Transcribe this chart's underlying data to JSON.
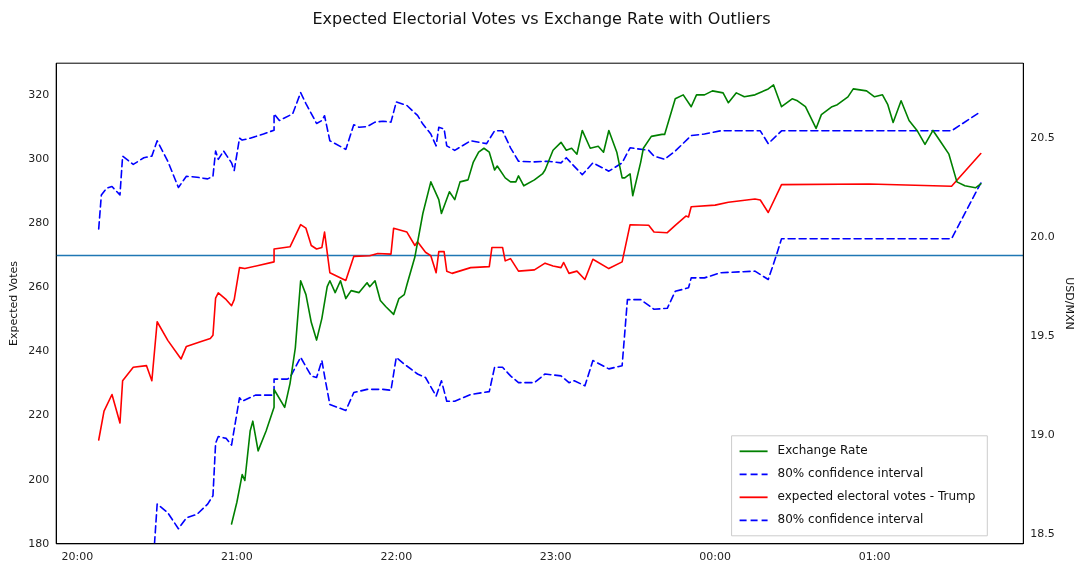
{
  "chart_data": {
    "type": "line",
    "title": "Expected Electorial Votes vs Exchange Rate with Outliers",
    "ylabel": "Expected Votes",
    "y2label": "USD/MXN",
    "xlim": [
      "--11-08T19:52",
      "--11-09T01:56"
    ],
    "xticks": [
      {
        "value": "--11-08T20:00",
        "label": "20:00"
      },
      {
        "value": "--11-08T21:00",
        "label": "21:00"
      },
      {
        "value": "--11-08T22:00",
        "label": "22:00"
      },
      {
        "value": "--11-08T23:00",
        "label": "23:00"
      },
      {
        "value": "--11-09T00:00",
        "label": "00:00"
      },
      {
        "value": "--11-09T01:00",
        "label": "01:00"
      }
    ],
    "ylim": [
      180,
      330
    ],
    "yticks": [
      180,
      200,
      220,
      240,
      260,
      280,
      300,
      320
    ],
    "y2lim": [
      18.45,
      20.88
    ],
    "y2ticks": [
      18.5,
      {
        "value": 19,
        "label": "19.0"
      },
      19.5,
      {
        "value": 20,
        "label": "20.0"
      },
      20.5
    ],
    "legend": "bottom right",
    "marker": "none",
    "ref_lines": [
      {
        "axis": "y",
        "value": 270,
        "color": "#1f77b4"
      }
    ],
    "series": [
      {
        "name": "Exchange Rate",
        "color": "#008000",
        "axis": "y2",
        "line_style": "solid",
        "x": [
          "--11-08T20:58",
          "--11-08T21:00",
          "--11-08T21:02",
          "--11-08T21:03",
          "--11-08T21:05",
          "--11-08T21:06",
          "--11-08T21:08",
          "--11-08T21:11",
          "--11-08T21:14",
          "--11-08T21:14",
          "--11-08T21:18",
          "--11-08T21:20",
          "--11-08T21:22",
          "--11-08T21:24",
          "--11-08T21:26",
          "--11-08T21:28",
          "--11-08T21:30",
          "--11-08T21:32",
          "--11-08T21:34",
          "--11-08T21:35",
          "--11-08T21:37",
          "--11-08T21:39",
          "--11-08T21:41",
          "--11-08T21:43",
          "--11-08T21:46",
          "--11-08T21:49",
          "--11-08T21:50",
          "--11-08T21:52",
          "--11-08T21:54",
          "--11-08T21:56",
          "--11-08T21:59",
          "--11-08T22:01",
          "--11-08T22:03",
          "--11-08T22:04",
          "--11-08T22:07",
          "--11-08T22:10",
          "--11-08T22:13",
          "--11-08T22:16",
          "--11-08T22:17",
          "--11-08T22:20",
          "--11-08T22:22",
          "--11-08T22:24",
          "--11-08T22:27",
          "--11-08T22:29",
          "--11-08T22:31",
          "--11-08T22:33",
          "--11-08T22:35",
          "--11-08T22:37",
          "--11-08T22:38",
          "--11-08T22:41",
          "--11-08T22:43",
          "--11-08T22:45",
          "--11-08T22:46",
          "--11-08T22:48",
          "--11-08T22:52",
          "--11-08T22:55",
          "--11-08T22:56",
          "--11-08T22:59",
          "--11-08T23:02",
          "--11-08T23:04",
          "--11-08T23:06",
          "--11-08T23:08",
          "--11-08T23:10",
          "--11-08T23:13",
          "--11-08T23:16",
          "--11-08T23:18",
          "--11-08T23:20",
          "--11-08T23:23",
          "--11-08T23:25",
          "--11-08T23:26",
          "--11-08T23:28",
          "--11-08T23:29",
          "--11-08T23:32",
          "--11-08T23:33",
          "--11-08T23:36",
          "--11-08T23:40",
          "--11-08T23:41",
          "--11-08T23:45",
          "--11-08T23:48",
          "--11-08T23:51",
          "--11-08T23:53",
          "--11-08T23:56",
          "--11-08T23:59",
          "--11-09T00:03",
          "--11-09T00:05",
          "--11-09T00:08",
          "--11-09T00:11",
          "--11-09T00:15",
          "--11-09T00:20",
          "--11-09T00:22",
          "--11-09T00:25",
          "--11-09T00:29",
          "--11-09T00:31",
          "--11-09T00:34",
          "--11-09T00:38",
          "--11-09T00:40",
          "--11-09T00:44",
          "--11-09T00:46",
          "--11-09T00:50",
          "--11-09T00:52",
          "--11-09T00:57",
          "--11-09T01:00",
          "--11-09T01:03",
          "--11-09T01:05",
          "--11-09T01:07",
          "--11-09T01:10",
          "--11-09T01:13",
          "--11-09T01:16",
          "--11-09T01:19",
          "--11-09T01:22",
          "--11-09T01:25",
          "--11-09T01:28",
          "--11-09T01:31",
          "--11-09T01:34",
          "--11-09T01:38",
          "--11-09T01:40"
        ],
        "values": [
          18.55,
          18.66,
          18.8,
          18.77,
          19.02,
          19.07,
          18.92,
          19.02,
          19.14,
          19.23,
          19.14,
          19.26,
          19.44,
          19.78,
          19.71,
          19.57,
          19.48,
          19.59,
          19.75,
          19.78,
          19.72,
          19.78,
          19.69,
          19.73,
          19.72,
          19.77,
          19.75,
          19.78,
          19.68,
          19.65,
          19.61,
          19.69,
          19.71,
          19.76,
          19.9,
          20.12,
          20.28,
          20.19,
          20.12,
          20.23,
          20.19,
          20.28,
          20.29,
          20.38,
          20.43,
          20.45,
          20.43,
          20.34,
          20.36,
          20.3,
          20.28,
          20.28,
          20.31,
          20.26,
          20.29,
          20.32,
          20.34,
          20.44,
          20.48,
          20.44,
          20.45,
          20.42,
          20.54,
          20.45,
          20.46,
          20.43,
          20.54,
          20.43,
          20.3,
          20.3,
          20.32,
          20.21,
          20.38,
          20.45,
          20.51,
          20.52,
          20.52,
          20.7,
          20.72,
          20.66,
          20.72,
          20.72,
          20.74,
          20.73,
          20.68,
          20.73,
          20.71,
          20.72,
          20.75,
          20.77,
          20.66,
          20.7,
          20.69,
          20.66,
          20.55,
          20.62,
          20.66,
          20.67,
          20.71,
          20.75,
          20.74,
          20.71,
          20.72,
          20.67,
          20.58,
          20.69,
          20.59,
          20.54,
          20.47,
          20.54,
          20.48,
          20.42,
          20.28,
          20.26,
          20.25,
          20.27
        ]
      },
      {
        "name": "80% confidence interval",
        "color": "#0000ff",
        "axis": "y",
        "line_style": "dashed",
        "x": [
          "--11-08T20:08",
          "--11-08T20:09",
          "--11-08T20:11",
          "--11-08T20:13",
          "--11-08T20:16",
          "--11-08T20:17",
          "--11-08T20:21",
          "--11-08T20:25",
          "--11-08T20:28",
          "--11-08T20:30",
          "--11-08T20:34",
          "--11-08T20:38",
          "--11-08T20:41",
          "--11-08T20:45",
          "--11-08T20:49",
          "--11-08T20:51",
          "--11-08T20:52",
          "--11-08T20:53",
          "--11-08T20:55",
          "--11-08T20:58",
          "--11-08T20:59",
          "--11-08T21:01",
          "--11-08T21:02",
          "--11-08T21:05",
          "--11-08T21:10",
          "--11-08T21:14",
          "--11-08T21:14",
          "--11-08T21:16",
          "--11-08T21:21",
          "--11-08T21:24",
          "--11-08T21:26",
          "--11-08T21:30",
          "--11-08T21:32",
          "--11-08T21:33",
          "--11-08T21:35",
          "--11-08T21:41",
          "--11-08T21:44",
          "--11-08T21:46",
          "--11-08T21:49",
          "--11-08T21:52",
          "--11-08T21:55",
          "--11-08T21:58",
          "--11-08T22:00",
          "--11-08T22:04",
          "--11-08T22:08",
          "--11-08T22:10",
          "--11-08T22:13",
          "--11-08T22:15",
          "--11-08T22:16",
          "--11-08T22:18",
          "--11-08T22:19",
          "--11-08T22:22",
          "--11-08T22:28",
          "--11-08T22:34",
          "--11-08T22:37",
          "--11-08T22:40",
          "--11-08T22:43",
          "--11-08T22:46",
          "--11-08T22:52",
          "--11-08T22:57",
          "--11-08T23:02",
          "--11-08T23:04",
          "--11-08T23:07",
          "--11-08T23:10",
          "--11-08T23:14",
          "--11-08T23:20",
          "--11-08T23:25",
          "--11-08T23:28",
          "--11-08T23:35",
          "--11-08T23:37",
          "--11-08T23:41",
          "--11-08T23:45",
          "--11-08T23:51",
          "--11-08T23:56",
          "--11-09T00:02",
          "--11-09T00:17",
          "--11-09T00:20",
          "--11-09T00:25",
          "--11-09T01:29",
          "--11-09T01:40"
        ],
        "values": [
          278.3,
          288.9,
          291.0,
          291.5,
          288.9,
          301.0,
          298.4,
          300.5,
          301.0,
          305.8,
          299.4,
          291.2,
          294.7,
          294.4,
          293.9,
          294.7,
          302.6,
          300.0,
          302.6,
          298.9,
          296.5,
          306.6,
          306.0,
          306.6,
          307.9,
          309.1,
          314.2,
          312.1,
          314.2,
          320.8,
          317.4,
          311.2,
          312.1,
          313.6,
          305.8,
          303.1,
          310.8,
          310.0,
          310.2,
          311.6,
          311.9,
          311.6,
          317.9,
          316.8,
          313.7,
          311.0,
          307.9,
          304.2,
          310.0,
          309.5,
          304.2,
          302.8,
          305.8,
          304.9,
          308.9,
          308.9,
          303.6,
          299.4,
          299.2,
          299.4,
          298.9,
          300.5,
          297.8,
          295.2,
          298.9,
          296.3,
          298.9,
          303.6,
          302.8,
          301.0,
          300.0,
          302.6,
          307.4,
          307.9,
          308.9,
          308.9,
          304.9,
          308.9,
          308.9,
          314.9
        ]
      },
      {
        "name": "expected electoral votes - Trump",
        "color": "#ff0000",
        "axis": "y",
        "line_style": "solid",
        "x": [
          "--11-08T20:08",
          "--11-08T20:10",
          "--11-08T20:13",
          "--11-08T20:16",
          "--11-08T20:17",
          "--11-08T20:21",
          "--11-08T20:26",
          "--11-08T20:28",
          "--11-08T20:30",
          "--11-08T20:34",
          "--11-08T20:39",
          "--11-08T20:41",
          "--11-08T20:46",
          "--11-08T20:50",
          "--11-08T20:51",
          "--11-08T20:52",
          "--11-08T20:53",
          "--11-08T20:56",
          "--11-08T20:58",
          "--11-08T20:59",
          "--11-08T21:01",
          "--11-08T21:03",
          "--11-08T21:14",
          "--11-08T21:14",
          "--11-08T21:20",
          "--11-08T21:24",
          "--11-08T21:26",
          "--11-08T21:28",
          "--11-08T21:30",
          "--11-08T21:32",
          "--11-08T21:33",
          "--11-08T21:35",
          "--11-08T21:41",
          "--11-08T21:44",
          "--11-08T21:50",
          "--11-08T21:53",
          "--11-08T21:58",
          "--11-08T21:59",
          "--11-08T22:04",
          "--11-08T22:07",
          "--11-08T22:08",
          "--11-08T22:11",
          "--11-08T22:13",
          "--11-08T22:15",
          "--11-08T22:16",
          "--11-08T22:18",
          "--11-08T22:19",
          "--11-08T22:21",
          "--11-08T22:28",
          "--11-08T22:35",
          "--11-08T22:36",
          "--11-08T22:40",
          "--11-08T22:41",
          "--11-08T22:43",
          "--11-08T22:46",
          "--11-08T22:52",
          "--11-08T22:56",
          "--11-08T22:59",
          "--11-08T23:02",
          "--11-08T23:03",
          "--11-08T23:05",
          "--11-08T23:08",
          "--11-08T23:11",
          "--11-08T23:14",
          "--11-08T23:20",
          "--11-08T23:25",
          "--11-08T23:28",
          "--11-08T23:35",
          "--11-08T23:37",
          "--11-08T23:42",
          "--11-08T23:45",
          "--11-08T23:49",
          "--11-08T23:50",
          "--11-08T23:51",
          "--11-09T00:00",
          "--11-09T00:05",
          "--11-09T00:15",
          "--11-09T00:17",
          "--11-09T00:20",
          "--11-09T00:25",
          "--11-09T00:58",
          "--11-09T01:29",
          "--11-09T01:40"
        ],
        "values": [
          212.4,
          221.4,
          226.6,
          217.7,
          230.9,
          235.1,
          235.6,
          230.9,
          249.3,
          243.5,
          237.7,
          241.6,
          243.0,
          244.1,
          245.1,
          256.7,
          258.3,
          256.2,
          254.3,
          256.2,
          266.2,
          265.9,
          268.0,
          272.0,
          272.7,
          279.6,
          278.5,
          273.1,
          272.0,
          272.5,
          277.3,
          264.6,
          262.2,
          269.7,
          269.9,
          270.6,
          270.4,
          278.5,
          277.3,
          273.1,
          274.3,
          271.0,
          269.9,
          264.6,
          271.2,
          271.2,
          265.1,
          264.4,
          266.2,
          266.5,
          272.5,
          272.5,
          268.3,
          269.0,
          265.1,
          265.5,
          267.6,
          266.7,
          266.2,
          267.8,
          264.4,
          265.1,
          262.5,
          268.8,
          265.9,
          268.0,
          279.6,
          279.4,
          277.3,
          277.1,
          279.4,
          282.3,
          282.0,
          285.2,
          285.7,
          286.6,
          287.6,
          287.3,
          283.4,
          292.1,
          292.3,
          291.6,
          301.8
        ]
      },
      {
        "name": "80% confidence interval",
        "color": "#0000ff",
        "axis": "y",
        "line_style": "dashed",
        "x": [
          "--11-08T20:29",
          "--11-08T20:30",
          "--11-08T20:34",
          "--11-08T20:38",
          "--11-08T20:41",
          "--11-08T20:45",
          "--11-08T20:49",
          "--11-08T20:51",
          "--11-08T20:52",
          "--11-08T20:53",
          "--11-08T20:56",
          "--11-08T20:58",
          "--11-08T21:01",
          "--11-08T21:02",
          "--11-08T21:07",
          "--11-08T21:14",
          "--11-08T21:14",
          "--11-08T21:19",
          "--11-08T21:20",
          "--11-08T21:24",
          "--11-08T21:28",
          "--11-08T21:30",
          "--11-08T21:32",
          "--11-08T21:33",
          "--11-08T21:35",
          "--11-08T21:41",
          "--11-08T21:44",
          "--11-08T21:49",
          "--11-08T21:55",
          "--11-08T21:58",
          "--11-08T22:00",
          "--11-08T22:03",
          "--11-08T22:08",
          "--11-08T22:11",
          "--11-08T22:15",
          "--11-08T22:17",
          "--11-08T22:19",
          "--11-08T22:22",
          "--11-08T22:28",
          "--11-08T22:35",
          "--11-08T22:37",
          "--11-08T22:40",
          "--11-08T22:43",
          "--11-08T22:46",
          "--11-08T22:52",
          "--11-08T22:56",
          "--11-08T23:02",
          "--11-08T23:05",
          "--11-08T23:07",
          "--11-08T23:11",
          "--11-08T23:14",
          "--11-08T23:20",
          "--11-08T23:25",
          "--11-08T23:27",
          "--11-08T23:32",
          "--11-08T23:37",
          "--11-08T23:42",
          "--11-08T23:45",
          "--11-08T23:50",
          "--11-08T23:51",
          "--11-08T23:56",
          "--11-09T00:02",
          "--11-09T00:15",
          "--11-09T00:20",
          "--11-09T00:23",
          "--11-09T00:25",
          "--11-09T01:29",
          "--11-09T01:40"
        ],
        "values": [
          180,
          192.4,
          189.7,
          184.7,
          188.1,
          189.2,
          192.4,
          195.0,
          211.4,
          213.5,
          212.9,
          210.8,
          225.6,
          224.5,
          226.4,
          226.4,
          231.4,
          231.4,
          231.9,
          238.2,
          232.4,
          231.9,
          237.2,
          232.4,
          223.5,
          221.6,
          227.2,
          228.2,
          228.2,
          227.9,
          238.2,
          236.1,
          233.0,
          231.9,
          226.1,
          230.9,
          224.5,
          224.5,
          226.6,
          227.5,
          235.1,
          235.1,
          232.4,
          230.3,
          230.3,
          233.0,
          232.4,
          230.3,
          230.9,
          229.3,
          237.2,
          234.6,
          235.6,
          256.2,
          256.2,
          253.2,
          253.5,
          258.8,
          259.9,
          263.0,
          263.0,
          264.6,
          265.1,
          262.5,
          269.9,
          275.2,
          275.2,
          292.6
        ]
      }
    ]
  }
}
